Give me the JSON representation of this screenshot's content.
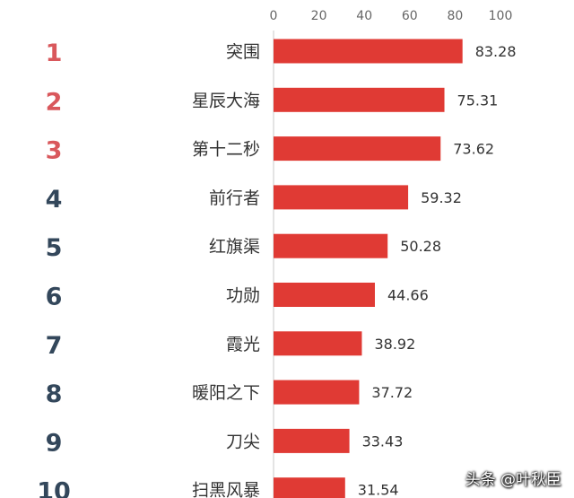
{
  "chart_data": {
    "type": "bar",
    "orientation": "horizontal",
    "xlim": [
      0,
      100
    ],
    "x_ticks": [
      "0",
      "20",
      "40",
      "60",
      "80",
      "100"
    ],
    "ranks": [
      "1",
      "2",
      "3",
      "4",
      "5",
      "6",
      "7",
      "8",
      "9",
      "10"
    ],
    "categories": [
      "突围",
      "星辰大海",
      "第十二秒",
      "前行者",
      "红旗渠",
      "功勋",
      "霞光",
      "暖阳之下",
      "刀尖",
      "扫黑风暴"
    ],
    "values": [
      83.28,
      75.31,
      73.62,
      59.32,
      50.28,
      44.66,
      38.92,
      37.72,
      33.43,
      31.54
    ],
    "value_labels": [
      "83.28",
      "75.31",
      "73.62",
      "59.32",
      "50.28",
      "44.66",
      "38.92",
      "37.72",
      "33.43",
      "31.54"
    ],
    "grid": false
  },
  "colors": {
    "bar": "#e03a34",
    "top_rank": "#d9585c",
    "other_rank": "#33475b",
    "axis_line": "#c8c8c8",
    "label_text": "#333333",
    "tick_text": "#666666"
  },
  "watermark": "头条 @叶秋臣"
}
